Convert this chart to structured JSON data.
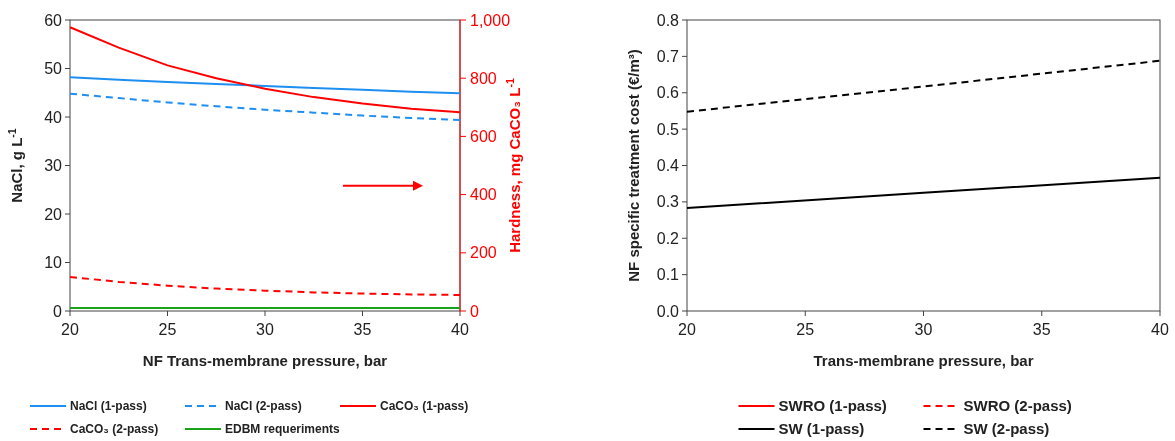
{
  "chart_data": [
    {
      "type": "line",
      "xlabel": "NF Trans-membrane pressure, bar",
      "ylabel": "NaCl, g L$^{-1}$",
      "y2label": "Hardness, mg CaCO₃ L$^{-1}$",
      "x": [
        20,
        22.5,
        25,
        27.5,
        30,
        32.5,
        35,
        37.5,
        40
      ],
      "xlim": [
        20,
        40
      ],
      "xticks": [
        20,
        25,
        30,
        35,
        40
      ],
      "ylim": [
        0,
        60
      ],
      "yticks": [
        0,
        10,
        20,
        30,
        40,
        50,
        60
      ],
      "y2lim": [
        0,
        1000
      ],
      "y2ticks": [
        0,
        200,
        400,
        600,
        800,
        {
          "value": 1000,
          "label": "1,000"
        }
      ],
      "grid": false,
      "legend": "bottom",
      "series": [
        {
          "name": "NaCl (1-pass)",
          "color": "#1e8ff0",
          "line_style": "solid",
          "values": [
            48.2,
            47.7,
            47.2,
            46.8,
            46.4,
            46.0,
            45.6,
            45.2,
            44.9
          ]
        },
        {
          "name": "NaCl (2-pass)",
          "color": "#1e8ff0",
          "line_style": "dashed",
          "values": [
            44.8,
            43.9,
            43.0,
            42.2,
            41.5,
            40.9,
            40.3,
            39.8,
            39.4
          ]
        },
        {
          "name": "CaCO₃ (1-pass)",
          "color": "#ff0000",
          "line_style": "solid",
          "axis": "y2",
          "values": [
            975,
            905,
            844,
            800,
            764,
            735,
            713,
            695,
            683
          ]
        },
        {
          "name": "CaCO₃ (2-pass)",
          "color": "#ff0000",
          "line_style": "dashed",
          "axis": "y2",
          "values": [
            117,
            100,
            87,
            77,
            70,
            64,
            60,
            57,
            55
          ]
        },
        {
          "name": "EDBM requeriments",
          "color": "#1aa31a",
          "line_style": "solid",
          "values": [
            0.6,
            0.6,
            0.6,
            0.6,
            0.6,
            0.6,
            0.6,
            0.6,
            0.6
          ]
        }
      ]
    },
    {
      "type": "line",
      "xlabel": "Trans-membrane pressure, bar",
      "ylabel": "NF specific treatment cost (€/m³)",
      "x": [
        20,
        30,
        40
      ],
      "xlim": [
        20,
        40
      ],
      "xticks": [
        20,
        25,
        30,
        35,
        40
      ],
      "ylim": [
        0,
        0.8
      ],
      "yticks": [
        {
          "value": 0,
          "label": "0.0"
        },
        0.1,
        0.2,
        0.3,
        0.4,
        0.5,
        0.6,
        0.7,
        0.8
      ],
      "grid": false,
      "legend": "bottom",
      "series": [
        {
          "name": "SWRO (1-pass)",
          "color": "#ff0000",
          "line_style": "solid",
          "values": [
            null,
            null,
            null
          ]
        },
        {
          "name": "SWRO (2-pass)",
          "color": "#ff0000",
          "line_style": "dashed",
          "values": [
            null,
            null,
            null
          ]
        },
        {
          "name": "SW (1-pass)",
          "color": "#000000",
          "line_style": "solid",
          "values": [
            0.283,
            0.325,
            0.366
          ]
        },
        {
          "name": "SW (2-pass)",
          "color": "#000000",
          "line_style": "dashed",
          "values": [
            0.548,
            0.617,
            0.688
          ]
        }
      ]
    }
  ]
}
